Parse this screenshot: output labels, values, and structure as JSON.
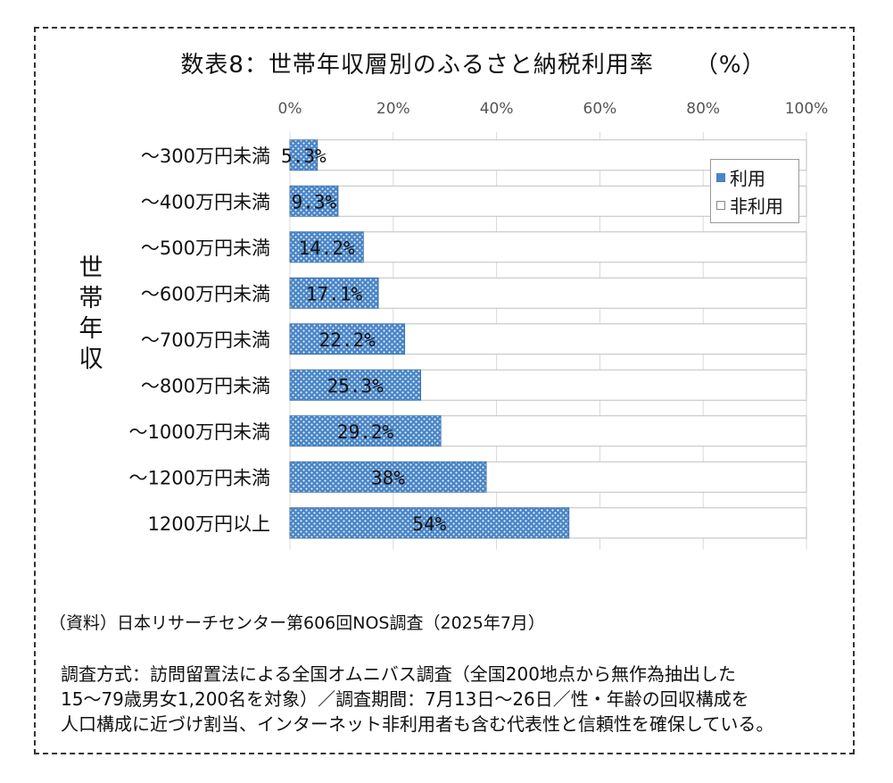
{
  "chart_data": {
    "type": "bar",
    "orientation": "horizontal",
    "stacked": true,
    "title": "数表8：世帯年収層別のふるさと納税利用率",
    "title_unit": "（%）",
    "ylabel": [
      "世",
      "帯",
      "年",
      "収"
    ],
    "xlim": [
      0,
      100
    ],
    "x_ticks": [
      "0%",
      "20%",
      "40%",
      "60%",
      "80%",
      "100%"
    ],
    "grid": true,
    "legend_position": "top-right",
    "categories": [
      "～300万円未満",
      "～400万円未満",
      "～500万円未満",
      "～600万円未満",
      "～700万円未満",
      "～800万円未満",
      "～1000万円未満",
      "～1200万円未満",
      "1200万円以上"
    ],
    "series": [
      {
        "name": "利用",
        "values": [
          5.3,
          9.3,
          14.2,
          17.1,
          22.2,
          25.3,
          29.2,
          38,
          54
        ],
        "color": "#4a86c8"
      },
      {
        "name": "非利用",
        "values": [
          94.7,
          90.7,
          85.8,
          82.9,
          77.8,
          74.7,
          70.8,
          62,
          46
        ],
        "color": "#ffffff"
      }
    ],
    "data_labels": [
      "5.3%",
      "9.3%",
      "14.2%",
      "17.1%",
      "22.2%",
      "25.3%",
      "29.2%",
      "38%",
      "54%"
    ]
  },
  "source": "（資料）日本リサーチセンター第606回NOS調査（2025年7月）",
  "note_lines": [
    "調査方式：訪問留置法による全国オムニバス調査（全国200地点から無作為抽出した",
    "15～79歳男女1,200名を対象）／調査期間：7月13日～26日／性・年齢の回収構成を",
    "人口構成に近づけ割当、インターネット非利用者も含む代表性と信頼性を確保している。"
  ]
}
